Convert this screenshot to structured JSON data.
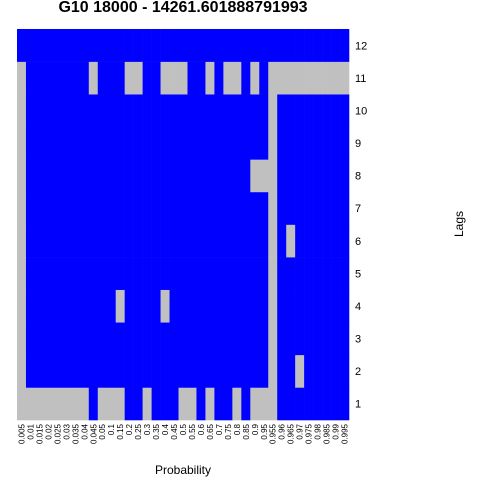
{
  "chart_data": {
    "type": "heatmap",
    "title": "G10 18000 - 14261.601888791993",
    "xlabel": "Probability",
    "ylabel": "Lags",
    "x": [
      "0.005",
      "0.01",
      "0.015",
      "0.02",
      "0.025",
      "0.03",
      "0.035",
      "0.04",
      "0.045",
      "0.05",
      "0.1",
      "0.15",
      "0.2",
      "0.25",
      "0.3",
      "0.35",
      "0.4",
      "0.45",
      "0.5",
      "0.55",
      "0.6",
      "0.65",
      "0.7",
      "0.75",
      "0.8",
      "0.85",
      "0.9",
      "0.95",
      "0.955",
      "0.96",
      "0.965",
      "0.97",
      "0.975",
      "0.98",
      "0.985",
      "0.99",
      "0.995"
    ],
    "y": [
      "1",
      "2",
      "3",
      "4",
      "5",
      "6",
      "7",
      "8",
      "9",
      "10",
      "11",
      "12"
    ],
    "colors": {
      "selected": "#0000ff",
      "not_selected": "#c0c0c0"
    },
    "grid": false,
    "legend": "none",
    "rows": [
      [
        0,
        0,
        0,
        0,
        0,
        0,
        0,
        0,
        1,
        0,
        0,
        0,
        1,
        1,
        0,
        1,
        1,
        1,
        0,
        0,
        1,
        0,
        1,
        1,
        0,
        1,
        0,
        0,
        0,
        1,
        1,
        1,
        1,
        1,
        1,
        1,
        1
      ],
      [
        0,
        1,
        1,
        1,
        1,
        1,
        1,
        1,
        1,
        1,
        1,
        1,
        1,
        1,
        1,
        1,
        1,
        1,
        1,
        1,
        1,
        1,
        1,
        1,
        1,
        1,
        1,
        1,
        0,
        1,
        1,
        0,
        1,
        1,
        1,
        1,
        1
      ],
      [
        0,
        1,
        1,
        1,
        1,
        1,
        1,
        1,
        1,
        1,
        1,
        1,
        1,
        1,
        1,
        1,
        1,
        1,
        1,
        1,
        1,
        1,
        1,
        1,
        1,
        1,
        1,
        1,
        0,
        1,
        1,
        1,
        1,
        1,
        1,
        1,
        1
      ],
      [
        0,
        1,
        1,
        1,
        1,
        1,
        1,
        1,
        1,
        1,
        1,
        0,
        1,
        1,
        1,
        1,
        0,
        1,
        1,
        1,
        1,
        1,
        1,
        1,
        1,
        1,
        1,
        1,
        0,
        1,
        1,
        1,
        1,
        1,
        1,
        1,
        1
      ],
      [
        0,
        1,
        1,
        1,
        1,
        1,
        1,
        1,
        1,
        1,
        1,
        1,
        1,
        1,
        1,
        1,
        1,
        1,
        1,
        1,
        1,
        1,
        1,
        1,
        1,
        1,
        1,
        1,
        0,
        1,
        1,
        1,
        1,
        1,
        1,
        1,
        1
      ],
      [
        0,
        1,
        1,
        1,
        1,
        1,
        1,
        1,
        1,
        1,
        1,
        1,
        1,
        1,
        1,
        1,
        1,
        1,
        1,
        1,
        1,
        1,
        1,
        1,
        1,
        1,
        1,
        1,
        0,
        1,
        0,
        1,
        1,
        1,
        1,
        1,
        1
      ],
      [
        0,
        1,
        1,
        1,
        1,
        1,
        1,
        1,
        1,
        1,
        1,
        1,
        1,
        1,
        1,
        1,
        1,
        1,
        1,
        1,
        1,
        1,
        1,
        1,
        1,
        1,
        1,
        1,
        0,
        1,
        1,
        1,
        1,
        1,
        1,
        1,
        1
      ],
      [
        0,
        1,
        1,
        1,
        1,
        1,
        1,
        1,
        1,
        1,
        1,
        1,
        1,
        1,
        1,
        1,
        1,
        1,
        1,
        1,
        1,
        1,
        1,
        1,
        1,
        1,
        0,
        0,
        0,
        1,
        1,
        1,
        1,
        1,
        1,
        1,
        1
      ],
      [
        0,
        1,
        1,
        1,
        1,
        1,
        1,
        1,
        1,
        1,
        1,
        1,
        1,
        1,
        1,
        1,
        1,
        1,
        1,
        1,
        1,
        1,
        1,
        1,
        1,
        1,
        1,
        1,
        0,
        1,
        1,
        1,
        1,
        1,
        1,
        1,
        1
      ],
      [
        0,
        1,
        1,
        1,
        1,
        1,
        1,
        1,
        1,
        1,
        1,
        1,
        1,
        1,
        1,
        1,
        1,
        1,
        1,
        1,
        1,
        1,
        1,
        1,
        1,
        1,
        1,
        1,
        0,
        1,
        1,
        1,
        1,
        1,
        1,
        1,
        1
      ],
      [
        0,
        1,
        1,
        1,
        1,
        1,
        1,
        1,
        0,
        1,
        1,
        1,
        0,
        0,
        1,
        1,
        0,
        0,
        0,
        1,
        1,
        0,
        1,
        0,
        0,
        1,
        0,
        1,
        0,
        0,
        0,
        0,
        0,
        0,
        0,
        0,
        0
      ],
      [
        1,
        1,
        1,
        1,
        1,
        1,
        1,
        1,
        1,
        1,
        1,
        1,
        1,
        1,
        1,
        1,
        1,
        1,
        1,
        1,
        1,
        1,
        1,
        1,
        1,
        1,
        1,
        1,
        1,
        1,
        1,
        1,
        1,
        1,
        1,
        1,
        1
      ]
    ]
  }
}
